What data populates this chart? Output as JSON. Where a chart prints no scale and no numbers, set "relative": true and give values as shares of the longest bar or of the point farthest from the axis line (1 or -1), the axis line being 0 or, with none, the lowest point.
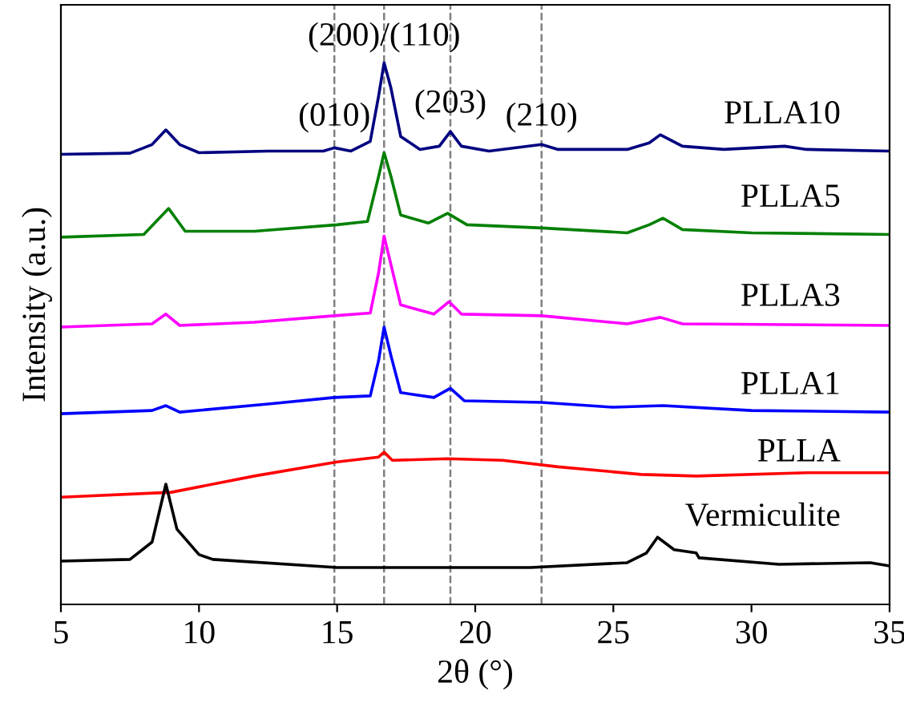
{
  "chart_data": {
    "type": "line",
    "relative": true,
    "xlabel": "2θ (°)",
    "ylabel": "Intensity (a.u.)",
    "xlim": [
      5,
      35
    ],
    "xticks": [
      5,
      10,
      15,
      20,
      25,
      30,
      35
    ],
    "tick_labels": "x",
    "grid": false,
    "legend": false,
    "marker": "none",
    "line_style": "solid",
    "series": [
      {
        "name": "PLLA10",
        "color": "#000080",
        "x": [
          5,
          7.5,
          8.3,
          8.8,
          9.3,
          10,
          12.5,
          14.5,
          14.9,
          15.5,
          16.2,
          16.5,
          16.7,
          16.95,
          17.3,
          18,
          18.7,
          19.1,
          19.5,
          20.5,
          22.4,
          23,
          25.5,
          26.3,
          26.7,
          27.5,
          29,
          31.2,
          32,
          35
        ],
        "values": [
          0.831,
          0.833,
          0.849,
          0.876,
          0.849,
          0.834,
          0.837,
          0.837,
          0.843,
          0.837,
          0.855,
          0.938,
          1.0,
          0.953,
          0.864,
          0.84,
          0.846,
          0.873,
          0.846,
          0.837,
          0.849,
          0.84,
          0.84,
          0.852,
          0.867,
          0.846,
          0.84,
          0.846,
          0.84,
          0.837
        ]
      },
      {
        "name": "PLLA5",
        "color": "#008000",
        "x": [
          5,
          8.0,
          8.9,
          9.5,
          12,
          15,
          16.1,
          16.5,
          16.7,
          16.95,
          17.3,
          18.3,
          19,
          19.7,
          22.4,
          25.5,
          26.3,
          26.8,
          27.5,
          30,
          35
        ],
        "values": [
          0.678,
          0.683,
          0.731,
          0.689,
          0.689,
          0.701,
          0.707,
          0.79,
          0.834,
          0.79,
          0.719,
          0.704,
          0.722,
          0.701,
          0.695,
          0.686,
          0.701,
          0.713,
          0.692,
          0.686,
          0.683
        ]
      },
      {
        "name": "PLLA3",
        "color": "#ff00ff",
        "x": [
          5,
          8.3,
          8.8,
          9.3,
          12,
          14.9,
          16.2,
          16.5,
          16.7,
          16.95,
          17.3,
          18.5,
          19.05,
          19.5,
          22.4,
          25.5,
          26.7,
          27.5,
          35
        ],
        "values": [
          0.512,
          0.518,
          0.536,
          0.515,
          0.521,
          0.533,
          0.538,
          0.612,
          0.68,
          0.627,
          0.553,
          0.536,
          0.559,
          0.536,
          0.533,
          0.518,
          0.53,
          0.518,
          0.515
        ]
      },
      {
        "name": "PLLA1",
        "color": "#0000ff",
        "x": [
          5,
          8.3,
          8.8,
          9.3,
          12.5,
          14.9,
          16.2,
          16.5,
          16.7,
          16.95,
          17.3,
          18.5,
          19.1,
          19.6,
          22.4,
          25,
          26.8,
          30,
          35
        ],
        "values": [
          0.352,
          0.358,
          0.367,
          0.355,
          0.37,
          0.382,
          0.385,
          0.45,
          0.512,
          0.459,
          0.391,
          0.382,
          0.399,
          0.376,
          0.373,
          0.364,
          0.367,
          0.358,
          0.355
        ]
      },
      {
        "name": "PLLA",
        "color": "#ff0000",
        "x": [
          5,
          9,
          12,
          15,
          16.5,
          16.7,
          17,
          19,
          21,
          23,
          26,
          28,
          32,
          35
        ],
        "values": [
          0.198,
          0.207,
          0.237,
          0.263,
          0.272,
          0.281,
          0.266,
          0.269,
          0.266,
          0.254,
          0.24,
          0.237,
          0.243,
          0.243
        ]
      },
      {
        "name": "Vermiculite",
        "color": "#000000",
        "x": [
          5,
          7.5,
          8.3,
          8.8,
          9.2,
          10,
          10.5,
          15,
          22,
          25.5,
          26.2,
          26.6,
          27.2,
          28,
          28.1,
          31,
          34.3,
          35
        ],
        "values": [
          0.08,
          0.083,
          0.115,
          0.222,
          0.139,
          0.092,
          0.083,
          0.068,
          0.068,
          0.077,
          0.095,
          0.124,
          0.101,
          0.095,
          0.086,
          0.074,
          0.077,
          0.071
        ]
      }
    ],
    "ref_lines": [
      {
        "axis": "x",
        "value": 14.9,
        "color": "#808080",
        "line_style": "dashed"
      },
      {
        "axis": "x",
        "value": 16.7,
        "color": "#808080",
        "line_style": "dashed"
      },
      {
        "axis": "x",
        "value": 19.1,
        "color": "#808080",
        "line_style": "dashed"
      },
      {
        "axis": "x",
        "value": 22.4,
        "color": "#808080",
        "line_style": "dashed"
      }
    ],
    "annotations": [
      {
        "text": "(010)",
        "x": 14.9,
        "y": 0.899
      },
      {
        "text": "(200)/(110)",
        "x": 16.7,
        "y": 1.047
      },
      {
        "text": "(203)",
        "x": 19.1,
        "y": 0.923
      },
      {
        "text": "(210)",
        "x": 22.4,
        "y": 0.899
      }
    ]
  }
}
